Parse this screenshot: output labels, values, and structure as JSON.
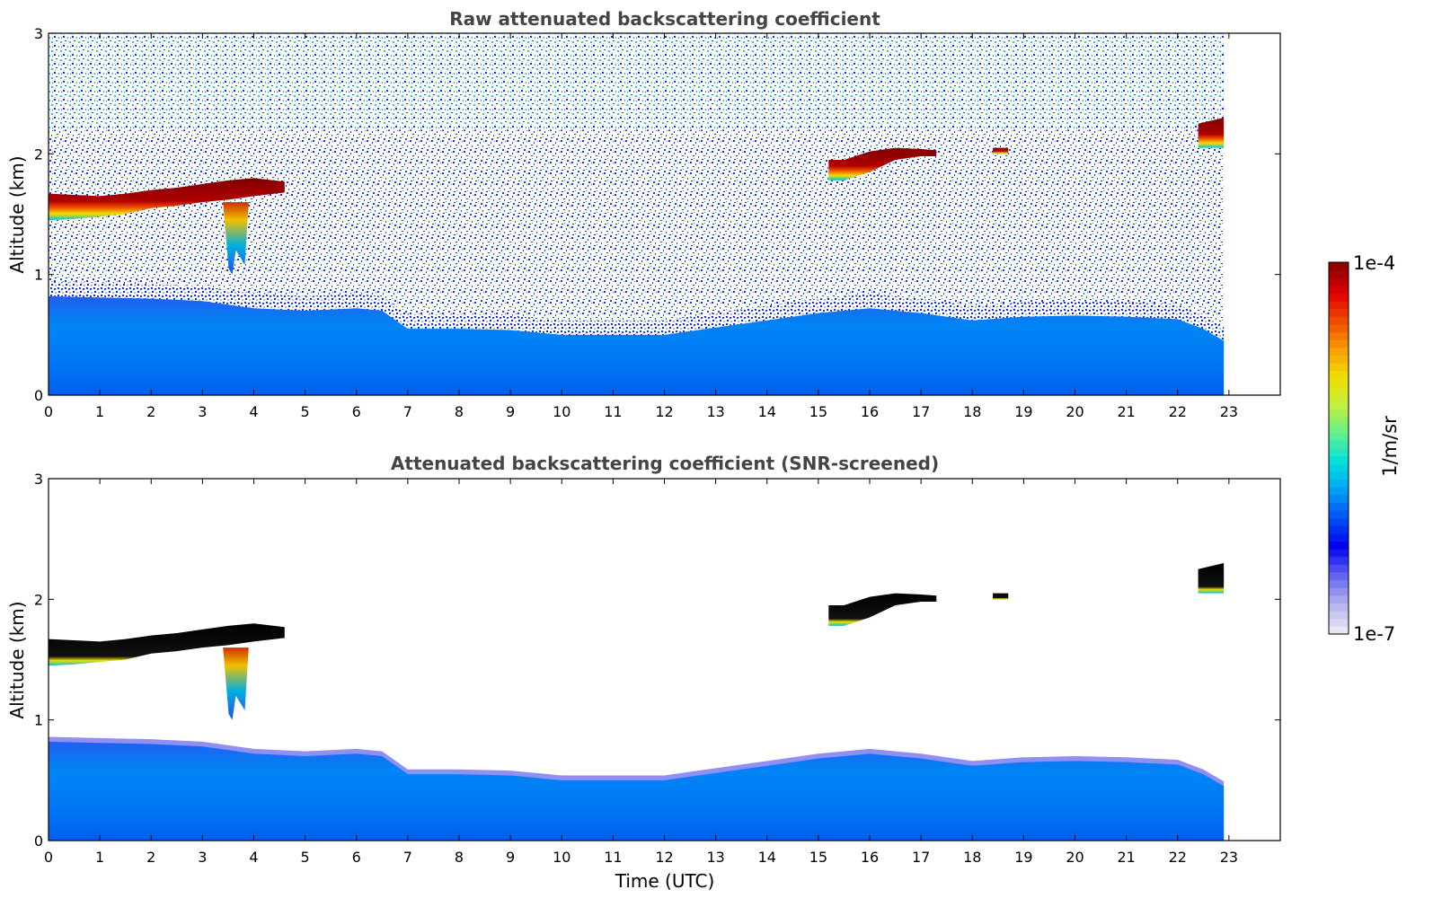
{
  "chart_data": [
    {
      "type": "heatmap",
      "title": "Raw attenuated backscattering coefficient",
      "ylabel": "Altitude (km)",
      "xlabel": "",
      "xlim": [
        0,
        24
      ],
      "ylim": [
        0,
        3
      ],
      "xticks": [
        "0",
        "1",
        "2",
        "3",
        "4",
        "5",
        "6",
        "7",
        "8",
        "9",
        "10",
        "11",
        "12",
        "13",
        "14",
        "15",
        "16",
        "17",
        "18",
        "19",
        "20",
        "21",
        "22",
        "23"
      ],
      "yticks": [
        "0",
        "1",
        "2",
        "3"
      ],
      "data_end_time": 22.9,
      "features": [
        {
          "kind": "boundary-layer",
          "time": [
            0,
            1,
            2,
            3,
            4,
            5,
            6,
            6.5,
            7,
            8,
            9,
            10,
            11,
            12,
            13,
            14,
            15,
            16,
            17,
            18,
            19,
            20,
            21,
            22,
            22.5,
            22.9
          ],
          "top_km": [
            0.82,
            0.81,
            0.8,
            0.78,
            0.72,
            0.7,
            0.72,
            0.7,
            0.55,
            0.55,
            0.54,
            0.5,
            0.5,
            0.5,
            0.56,
            0.62,
            0.68,
            0.72,
            0.68,
            0.62,
            0.65,
            0.66,
            0.65,
            0.63,
            0.55,
            0.45
          ]
        },
        {
          "kind": "cloud",
          "time": [
            0,
            0.5,
            1,
            1.5,
            2,
            2.5,
            3,
            3.5,
            4,
            4.6
          ],
          "base_km": [
            1.45,
            1.46,
            1.48,
            1.5,
            1.55,
            1.57,
            1.6,
            1.62,
            1.65,
            1.68
          ],
          "top_km": [
            1.67,
            1.66,
            1.65,
            1.67,
            1.7,
            1.72,
            1.75,
            1.78,
            1.8,
            1.77
          ]
        },
        {
          "kind": "virga",
          "time": [
            3.4,
            3.9
          ],
          "base_km": 1.0,
          "top_km": 1.6
        },
        {
          "kind": "cloud",
          "time": [
            15.2,
            15.5,
            16,
            16.5,
            17,
            17.3
          ],
          "base_km": [
            1.78,
            1.78,
            1.85,
            1.95,
            1.98,
            1.98
          ],
          "top_km": [
            1.95,
            1.95,
            2.02,
            2.05,
            2.04,
            2.03
          ]
        },
        {
          "kind": "cloud",
          "time": [
            18.4,
            18.7
          ],
          "base_km": [
            2.0,
            2.0
          ],
          "top_km": [
            2.05,
            2.05
          ]
        },
        {
          "kind": "cloud",
          "time": [
            22.4,
            22.9
          ],
          "base_km": [
            2.05,
            2.05
          ],
          "top_km": [
            2.25,
            2.3
          ]
        }
      ]
    },
    {
      "type": "heatmap",
      "title": "Attenuated backscattering coefficient (SNR-screened)",
      "ylabel": "Altitude (km)",
      "xlabel": "Time (UTC)",
      "xlim": [
        0,
        24
      ],
      "ylim": [
        0,
        3
      ],
      "xticks": [
        "0",
        "1",
        "2",
        "3",
        "4",
        "5",
        "6",
        "7",
        "8",
        "9",
        "10",
        "11",
        "12",
        "13",
        "14",
        "15",
        "16",
        "17",
        "18",
        "19",
        "20",
        "21",
        "22",
        "23"
      ],
      "yticks": [
        "0",
        "1",
        "2",
        "3"
      ],
      "data_end_time": 22.9,
      "screened": true
    }
  ],
  "colorbar": {
    "label": "1/m/sr",
    "max_label": "1e-4",
    "min_label": "1e-7",
    "scale": "log",
    "range": [
      1e-07,
      0.0001
    ],
    "colors": [
      "#e6e6f5",
      "#b0b0f0",
      "#6060f0",
      "#0000f0",
      "#0050f5",
      "#00a0f5",
      "#00e0e0",
      "#60f090",
      "#c0f040",
      "#f0e000",
      "#f8a000",
      "#f05000",
      "#e00000",
      "#900000"
    ]
  }
}
